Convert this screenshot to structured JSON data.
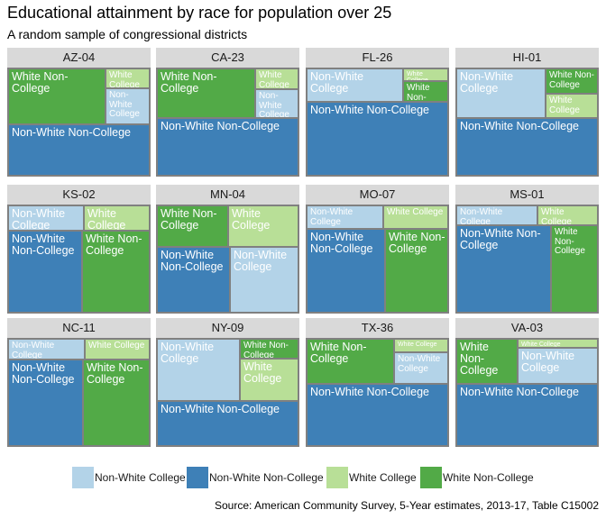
{
  "title": "Educational attainment by race for population over 25",
  "subtitle": "A random sample of congressional districts",
  "caption": "Source: American Community Survey, 5-Year estimates, 2013-17, Table C15002",
  "colors": {
    "Non-White College": "#b3d3e8",
    "Non-White Non-College": "#3e80b7",
    "White College": "#b8df97",
    "White Non-College": "#52aa47"
  },
  "legend": [
    "Non-White College",
    "Non-White Non-College",
    "White College",
    "White Non-College"
  ],
  "chart_data": {
    "type": "treemap",
    "categories": [
      "Non-White College",
      "Non-White Non-College",
      "White College",
      "White Non-College"
    ],
    "panels": [
      {
        "district": "AZ-04",
        "values": {
          "Non-White Non-College": 0.47,
          "White Non-College": 0.37,
          "White College": 0.06,
          "Non-White College": 0.1
        }
      },
      {
        "district": "CA-23",
        "values": {
          "Non-White Non-College": 0.53,
          "White Non-College": 0.33,
          "White College": 0.06,
          "Non-White College": 0.08
        }
      },
      {
        "district": "FL-26",
        "values": {
          "Non-White Non-College": 0.68,
          "Non-White College": 0.22,
          "White College": 0.04,
          "White Non-College": 0.06
        }
      },
      {
        "district": "HI-01",
        "values": {
          "Non-White Non-College": 0.53,
          "Non-White College": 0.3,
          "White Non-College": 0.09,
          "White College": 0.08
        }
      },
      {
        "district": "KS-02",
        "values": {
          "Non-White College": 0.13,
          "White College": 0.11,
          "Non-White Non-College": 0.4,
          "White Non-College": 0.36
        }
      },
      {
        "district": "MN-04",
        "values": {
          "White Non-College": 0.2,
          "White College": 0.19,
          "Non-White Non-College": 0.32,
          "Non-White College": 0.29
        }
      },
      {
        "district": "MO-07",
        "values": {
          "Non-White College": 0.12,
          "White College": 0.1,
          "Non-White Non-College": 0.44,
          "White Non-College": 0.34
        }
      },
      {
        "district": "MS-01",
        "values": {
          "Non-White College": 0.11,
          "White College": 0.08,
          "Non-White Non-College": 0.55,
          "White Non-College": 0.26
        }
      },
      {
        "district": "NC-11",
        "values": {
          "Non-White College": 0.11,
          "White College": 0.09,
          "Non-White Non-College": 0.43,
          "White Non-College": 0.37
        }
      },
      {
        "district": "NY-09",
        "values": {
          "Non-White College": 0.35,
          "White Non-College": 0.08,
          "White College": 0.16,
          "Non-White Non-College": 0.41
        }
      },
      {
        "district": "TX-36",
        "values": {
          "White Non-College": 0.27,
          "White College": 0.05,
          "Non-White College": 0.11,
          "Non-White Non-College": 0.57
        }
      },
      {
        "district": "VA-03",
        "values": {
          "White Non-College": 0.19,
          "White College": 0.05,
          "Non-White College": 0.19,
          "Non-White Non-College": 0.57
        }
      }
    ]
  }
}
